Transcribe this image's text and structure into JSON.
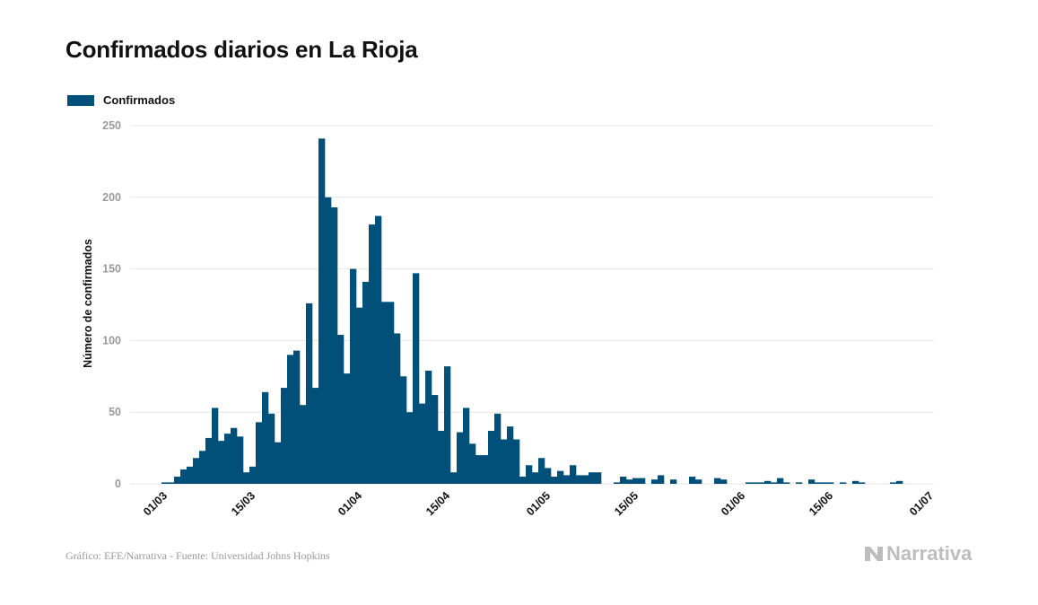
{
  "page": {
    "title": "Confirmados diarios en La Rioja",
    "source": "Gráfico: EFE/Narrativa - Fuente: Universidad Johns Hopkins",
    "brand": "Narrativa"
  },
  "colors": {
    "bar": "#00507a",
    "grid": "#e6e6e6",
    "tick": "#9a9a9a",
    "logo": "#bdbdbd"
  },
  "icons": {
    "logo_mark": "narrativa-logo-icon"
  },
  "chart_data": {
    "type": "bar",
    "title": "Confirmados diarios en La Rioja",
    "xlabel": "",
    "ylabel": "Número de confirmados",
    "ylim": [
      0,
      250
    ],
    "yticks": [
      0,
      50,
      100,
      150,
      200,
      250
    ],
    "grid": true,
    "legend": "top-left",
    "x_start": "2020-02-24",
    "x_end": "2020-07-01",
    "xticks": [
      {
        "date": "2020-03-01",
        "label": "01/03"
      },
      {
        "date": "2020-03-15",
        "label": "15/03"
      },
      {
        "date": "2020-04-01",
        "label": "01/04"
      },
      {
        "date": "2020-04-15",
        "label": "15/04"
      },
      {
        "date": "2020-05-01",
        "label": "01/05"
      },
      {
        "date": "2020-05-15",
        "label": "15/05"
      },
      {
        "date": "2020-06-01",
        "label": "01/06"
      },
      {
        "date": "2020-06-15",
        "label": "15/06"
      },
      {
        "date": "2020-07-01",
        "label": "01/07"
      }
    ],
    "series": [
      {
        "name": "Confirmados",
        "start_date": "2020-02-29",
        "values": [
          1,
          1,
          5,
          10,
          12,
          18,
          23,
          32,
          53,
          30,
          35,
          39,
          33,
          8,
          12,
          43,
          64,
          49,
          29,
          67,
          90,
          93,
          55,
          126,
          67,
          241,
          200,
          193,
          104,
          77,
          150,
          123,
          141,
          181,
          187,
          127,
          127,
          105,
          75,
          50,
          147,
          56,
          79,
          62,
          37,
          82,
          8,
          36,
          53,
          28,
          20,
          20,
          37,
          49,
          31,
          40,
          31,
          5,
          13,
          8,
          18,
          11,
          5,
          9,
          6,
          13,
          6,
          6,
          8,
          8,
          0,
          0,
          1,
          5,
          3,
          4,
          4,
          0,
          3,
          6,
          0,
          3,
          0,
          0,
          5,
          3,
          0,
          0,
          4,
          3,
          0,
          0,
          0,
          1,
          1,
          1,
          2,
          1,
          4,
          1,
          0,
          1,
          0,
          3,
          1,
          1,
          1,
          0,
          1,
          0,
          2,
          1,
          0,
          0,
          0,
          0,
          1,
          2
        ]
      }
    ]
  }
}
